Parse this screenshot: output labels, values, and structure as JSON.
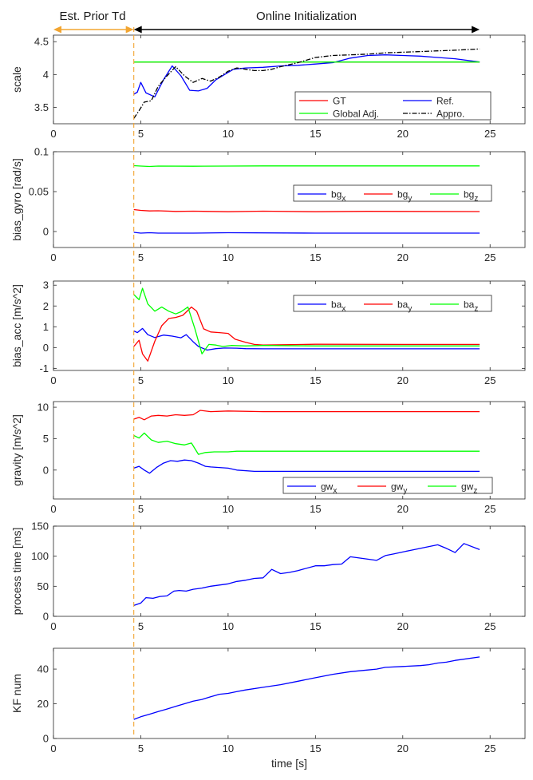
{
  "header": {
    "prior_label": "Est. Prior Td",
    "online_label": "Online Initialization",
    "prior_arrow_color": "#F2A531",
    "online_arrow_color": "#000000",
    "x_range": [
      4.6,
      24.4
    ],
    "prior_range": [
      0,
      4.6
    ]
  },
  "divider": {
    "x": 4.6,
    "color": "#F2A531"
  },
  "chart_data": [
    {
      "id": "scale",
      "type": "line",
      "ylabel": "scale",
      "xlabel": "",
      "xlim": [
        0,
        27
      ],
      "ylim": [
        3.25,
        4.6
      ],
      "xticks": [
        0,
        5,
        10,
        15,
        20,
        25
      ],
      "yticks": [
        3.5,
        4,
        4.5
      ],
      "ytick_labels": [
        "3.5",
        "4",
        "4.5"
      ],
      "legend": {
        "placement": "bottom-right",
        "columns": 2
      },
      "series": [
        {
          "name": "GT",
          "color": "#FF0000",
          "dash": "",
          "x": [
            4.6,
            24.4
          ],
          "y": [
            4.19,
            4.19
          ]
        },
        {
          "name": "Ref.",
          "color": "#0000FF",
          "dash": "",
          "x": [
            4.6,
            4.8,
            5.0,
            5.3,
            5.8,
            6.3,
            6.8,
            7.3,
            7.8,
            8.3,
            8.8,
            9.3,
            9.8,
            10.3,
            11.0,
            12.0,
            13.0,
            14.0,
            15.0,
            16.0,
            17.0,
            18.0,
            19.0,
            20.0,
            21.0,
            22.0,
            23.0,
            24.4
          ],
          "y": [
            3.7,
            3.73,
            3.88,
            3.72,
            3.66,
            3.92,
            4.13,
            3.98,
            3.76,
            3.75,
            3.79,
            3.92,
            4.0,
            4.08,
            4.1,
            4.11,
            4.13,
            4.14,
            4.16,
            4.18,
            4.25,
            4.29,
            4.3,
            4.29,
            4.28,
            4.26,
            4.24,
            4.19
          ]
        },
        {
          "name": "Global Adj.",
          "color": "#00FF00",
          "dash": "",
          "x": [
            4.6,
            24.4
          ],
          "y": [
            4.19,
            4.19
          ]
        },
        {
          "name": "Appro.",
          "color": "#000000",
          "dash": "6,2,1.5,2",
          "x": [
            4.6,
            4.9,
            5.2,
            5.6,
            6.0,
            6.5,
            7.0,
            7.5,
            8.0,
            8.5,
            9.0,
            9.5,
            10.0,
            10.5,
            11.0,
            11.5,
            12.0,
            12.5,
            13.0,
            13.5,
            14.0,
            15.0,
            16.0,
            17.0,
            18.0,
            19.0,
            20.0,
            21.0,
            22.0,
            23.0,
            24.4
          ],
          "y": [
            3.33,
            3.45,
            3.58,
            3.6,
            3.82,
            3.98,
            4.12,
            3.98,
            3.88,
            3.94,
            3.9,
            3.96,
            4.05,
            4.1,
            4.08,
            4.06,
            4.06,
            4.08,
            4.12,
            4.15,
            4.18,
            4.26,
            4.29,
            4.3,
            4.31,
            4.33,
            4.34,
            4.35,
            4.36,
            4.37,
            4.39
          ]
        }
      ]
    },
    {
      "id": "bias_gyro",
      "type": "line",
      "ylabel": "bias_gyro [rad/s]",
      "xlabel": "",
      "xlim": [
        0,
        27
      ],
      "ylim": [
        -0.02,
        0.1
      ],
      "xticks": [
        0,
        5,
        10,
        15,
        20,
        25
      ],
      "yticks": [
        0,
        0.05,
        0.1
      ],
      "ytick_labels": [
        "0",
        "0.05",
        "0.1"
      ],
      "legend": {
        "placement": "middle-right",
        "columns": 3
      },
      "series": [
        {
          "name": "bg",
          "sub": "x",
          "color": "#0000FF",
          "dash": "",
          "x": [
            4.6,
            5.0,
            5.5,
            6.0,
            8.0,
            10.0,
            15.0,
            20.0,
            24.4
          ],
          "y": [
            -0.001,
            -0.002,
            -0.0015,
            -0.002,
            -0.002,
            -0.0015,
            -0.002,
            -0.002,
            -0.002
          ]
        },
        {
          "name": "bg",
          "sub": "y",
          "color": "#FF0000",
          "dash": "",
          "x": [
            4.6,
            5.0,
            5.5,
            6.0,
            7.0,
            8.0,
            10.0,
            12.0,
            15.0,
            18.0,
            20.0,
            24.4
          ],
          "y": [
            0.0275,
            0.0265,
            0.0258,
            0.026,
            0.0252,
            0.0255,
            0.0248,
            0.0255,
            0.0248,
            0.0253,
            0.0252,
            0.025
          ]
        },
        {
          "name": "bg",
          "sub": "z",
          "color": "#00FF00",
          "dash": "",
          "x": [
            4.6,
            5.0,
            5.5,
            6.0,
            8.0,
            10.0,
            12.0,
            15.0,
            20.0,
            24.4
          ],
          "y": [
            0.0825,
            0.082,
            0.0815,
            0.082,
            0.0818,
            0.082,
            0.0822,
            0.0822,
            0.0822,
            0.0822
          ]
        }
      ]
    },
    {
      "id": "bias_acc",
      "type": "line",
      "ylabel": "bias_acc [m/s^2]",
      "xlabel": "",
      "xlim": [
        0,
        27
      ],
      "ylim": [
        -1.1,
        3.2
      ],
      "xticks": [
        0,
        5,
        10,
        15,
        20,
        25
      ],
      "yticks": [
        -1,
        0,
        1,
        2,
        3
      ],
      "ytick_labels": [
        "-1",
        "0",
        "1",
        "2",
        "3"
      ],
      "legend": {
        "placement": "top-right",
        "columns": 3
      },
      "series": [
        {
          "name": "ba",
          "sub": "x",
          "color": "#0000FF",
          "dash": "",
          "x": [
            4.6,
            4.8,
            5.1,
            5.4,
            5.8,
            6.3,
            6.8,
            7.3,
            7.6,
            8.0,
            8.3,
            8.8,
            9.3,
            9.8,
            10.5,
            11.0,
            12.0,
            15.0,
            20.0,
            24.4
          ],
          "y": [
            0.8,
            0.72,
            0.92,
            0.62,
            0.48,
            0.6,
            0.55,
            0.47,
            0.62,
            0.28,
            0.05,
            -0.12,
            -0.05,
            -0.02,
            -0.03,
            -0.05,
            -0.06,
            -0.06,
            -0.06,
            -0.06
          ]
        },
        {
          "name": "ba",
          "sub": "y",
          "color": "#FF0000",
          "dash": "",
          "x": [
            4.6,
            4.9,
            5.1,
            5.4,
            5.8,
            6.2,
            6.6,
            7.0,
            7.4,
            7.9,
            8.2,
            8.6,
            9.0,
            9.5,
            10.0,
            10.4,
            11.0,
            11.5,
            12.0,
            15.0,
            20.0,
            24.4
          ],
          "y": [
            0.05,
            0.35,
            -0.3,
            -0.65,
            0.3,
            1.05,
            1.4,
            1.45,
            1.55,
            1.95,
            1.75,
            0.9,
            0.75,
            0.72,
            0.68,
            0.4,
            0.25,
            0.15,
            0.12,
            0.16,
            0.15,
            0.15
          ]
        },
        {
          "name": "ba",
          "sub": "z",
          "color": "#00FF00",
          "dash": "",
          "x": [
            4.6,
            4.9,
            5.1,
            5.4,
            5.8,
            6.2,
            6.6,
            7.0,
            7.3,
            7.7,
            8.1,
            8.5,
            8.9,
            9.3,
            9.7,
            10.2,
            11.0,
            12.0,
            15.0,
            20.0,
            24.4
          ],
          "y": [
            2.55,
            2.3,
            2.85,
            2.1,
            1.75,
            1.95,
            1.75,
            1.62,
            1.72,
            1.95,
            0.9,
            -0.3,
            0.15,
            0.12,
            0.05,
            0.1,
            0.08,
            0.1,
            0.08,
            0.08,
            0.08
          ]
        }
      ]
    },
    {
      "id": "gravity",
      "type": "line",
      "ylabel": "gravity [m/s^2]",
      "xlabel": "",
      "xlim": [
        0,
        27
      ],
      "ylim": [
        -4.6,
        10.9
      ],
      "xticks": [
        0,
        5,
        10,
        15,
        20,
        25
      ],
      "yticks": [
        0,
        5,
        10
      ],
      "ytick_labels": [
        "0",
        "5",
        "10"
      ],
      "legend": {
        "placement": "bottom-right",
        "columns": 3
      },
      "series": [
        {
          "name": "gw",
          "sub": "x",
          "color": "#0000FF",
          "dash": "",
          "x": [
            4.6,
            4.9,
            5.2,
            5.5,
            5.9,
            6.3,
            6.7,
            7.1,
            7.5,
            7.9,
            8.3,
            8.7,
            9.0,
            9.5,
            10.0,
            10.5,
            11.5,
            12.0,
            15.0,
            20.0,
            24.4
          ],
          "y": [
            0.3,
            0.6,
            0.0,
            -0.5,
            0.4,
            1.1,
            1.5,
            1.4,
            1.6,
            1.5,
            1.1,
            0.6,
            0.5,
            0.4,
            0.3,
            0.0,
            -0.2,
            -0.2,
            -0.2,
            -0.2,
            -0.2
          ]
        },
        {
          "name": "gw",
          "sub": "y",
          "color": "#FF0000",
          "dash": "",
          "x": [
            4.6,
            4.9,
            5.2,
            5.6,
            6.0,
            6.5,
            7.0,
            7.5,
            8.0,
            8.4,
            9.0,
            10.0,
            12.0,
            15.0,
            20.0,
            24.4
          ],
          "y": [
            8.1,
            8.4,
            8.0,
            8.6,
            8.7,
            8.6,
            8.8,
            8.7,
            8.8,
            9.5,
            9.3,
            9.4,
            9.3,
            9.3,
            9.3,
            9.3
          ]
        },
        {
          "name": "gw",
          "sub": "z",
          "color": "#00FF00",
          "dash": "",
          "x": [
            4.6,
            4.9,
            5.2,
            5.6,
            6.0,
            6.5,
            7.0,
            7.5,
            7.9,
            8.3,
            8.7,
            9.2,
            10.0,
            10.5,
            12.0,
            15.0,
            20.0,
            24.4
          ],
          "y": [
            5.5,
            5.1,
            5.9,
            4.8,
            4.4,
            4.6,
            4.2,
            4.0,
            4.3,
            2.5,
            2.8,
            2.9,
            2.9,
            3.0,
            3.0,
            3.0,
            3.0,
            3.0
          ]
        }
      ]
    },
    {
      "id": "process_time",
      "type": "line",
      "ylabel": "process time [ms]",
      "xlabel": "",
      "xlim": [
        0,
        27
      ],
      "ylim": [
        0,
        150
      ],
      "xticks": [
        0,
        5,
        10,
        15,
        20,
        25
      ],
      "yticks": [
        0,
        50,
        100,
        150
      ],
      "ytick_labels": [
        "0",
        "50",
        "100",
        "150"
      ],
      "legend": null,
      "series": [
        {
          "name": "process time",
          "color": "#0000FF",
          "dash": "",
          "x": [
            4.6,
            5.0,
            5.3,
            5.7,
            6.1,
            6.5,
            6.9,
            7.2,
            7.6,
            8.0,
            8.5,
            9.0,
            9.5,
            10.0,
            10.5,
            11.0,
            11.5,
            12.0,
            12.5,
            13.0,
            13.5,
            14.0,
            15.0,
            15.5,
            16.0,
            16.5,
            17.0,
            17.5,
            18.0,
            18.5,
            19.0,
            19.5,
            20.0,
            20.5,
            21.0,
            21.5,
            22.0,
            22.5,
            23.0,
            23.5,
            24.4
          ],
          "y": [
            18,
            22,
            31,
            30,
            33,
            34,
            42,
            43,
            42,
            45,
            47,
            50,
            52,
            54,
            58,
            60,
            63,
            64,
            78,
            71,
            73,
            76,
            84,
            84,
            86,
            87,
            99,
            97,
            95,
            93,
            101,
            104,
            107,
            110,
            113,
            116,
            119,
            113,
            106,
            121,
            111
          ]
        }
      ]
    },
    {
      "id": "kf_num",
      "type": "line",
      "ylabel": "KF num",
      "xlabel": "time [s]",
      "xlim": [
        0,
        27
      ],
      "ylim": [
        0,
        52
      ],
      "xticks": [
        0,
        5,
        10,
        15,
        20,
        25
      ],
      "yticks": [
        0,
        20,
        40
      ],
      "ytick_labels": [
        "0",
        "20",
        "40"
      ],
      "legend": null,
      "series": [
        {
          "name": "KF num",
          "color": "#0000FF",
          "dash": "",
          "x": [
            4.6,
            5.0,
            5.5,
            6.0,
            6.5,
            7.0,
            7.5,
            8.0,
            8.5,
            9.0,
            9.5,
            10.0,
            10.5,
            11.0,
            12.0,
            13.0,
            14.0,
            15.0,
            16.0,
            17.0,
            18.0,
            18.5,
            19.0,
            20.0,
            21.0,
            21.5,
            22.0,
            22.5,
            23.0,
            24.4
          ],
          "y": [
            11,
            12.5,
            14,
            15.5,
            17,
            18.5,
            20,
            21.5,
            22.5,
            24,
            25.5,
            26,
            27,
            28,
            29.5,
            31,
            33,
            35,
            37,
            38.5,
            39.5,
            40,
            41,
            41.5,
            42,
            42.5,
            43.5,
            44,
            45,
            47
          ]
        }
      ]
    }
  ]
}
